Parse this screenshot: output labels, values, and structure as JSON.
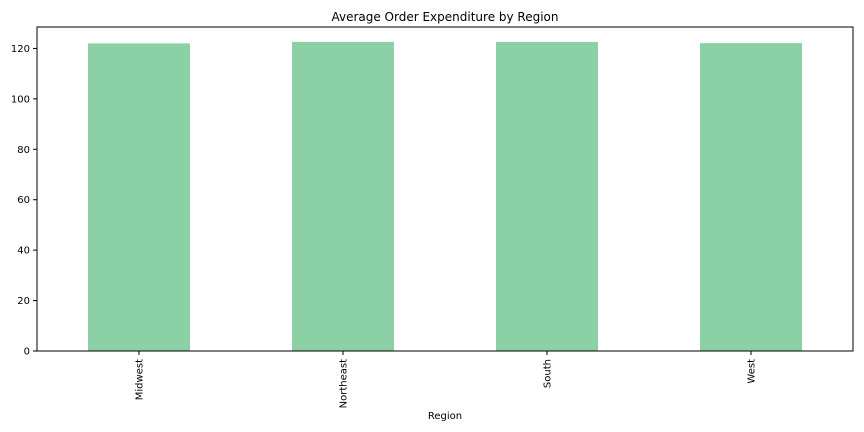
{
  "chart_data": {
    "type": "bar",
    "title": "Average Order Expenditure by Region",
    "xlabel": "Region",
    "ylabel": "",
    "categories": [
      "Midwest",
      "Northeast",
      "South",
      "West"
    ],
    "values": [
      122.0,
      122.6,
      122.6,
      122.1
    ],
    "ylim": [
      0,
      128.5
    ],
    "yticks": [
      0,
      20,
      40,
      60,
      80,
      100,
      120
    ],
    "ytick_labels": [
      "0",
      "20",
      "40",
      "60",
      "80",
      "100",
      "120"
    ],
    "bar_color": "#8cd1a5",
    "grid": false,
    "legend": "none"
  }
}
